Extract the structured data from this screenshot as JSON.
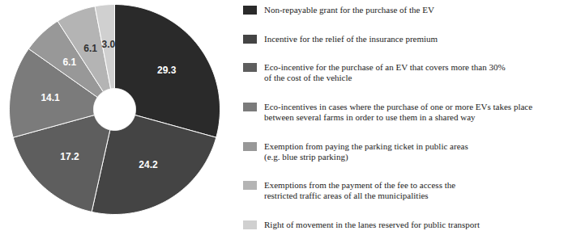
{
  "chart_data": {
    "type": "pie",
    "categories": [
      "Non-repayable grant for the purchase of the EV",
      "Incentive for the relief of the insurance premium",
      "Eco-incentive for the purchase of an EV that covers more than 30%\nof the cost of the vehicle",
      "Eco-incentives in cases where the purchase of one or more EVs takes place\nbetween several farms in order to use them in a shared way",
      "Exemption from paying the parking ticket in public areas\n(e.g. blue strip parking)",
      "Exemptions from the payment of the fee to access the\nrestricted traffic areas of all the municipalities",
      "Right of movement in the lanes reserved for public transport"
    ],
    "values": [
      29.3,
      24.2,
      17.2,
      14.1,
      6.1,
      6.1,
      3.0
    ],
    "value_labels": [
      "29.3",
      "24.2",
      "17.2",
      "14.1",
      "6.1",
      "6.1",
      "3.0"
    ],
    "colors": [
      "#2a2a2a",
      "#444444",
      "#5e5e5e",
      "#7b7b7b",
      "#989898",
      "#b4b4b4",
      "#d0d0d0"
    ],
    "data_labels": true,
    "legend": "right"
  }
}
